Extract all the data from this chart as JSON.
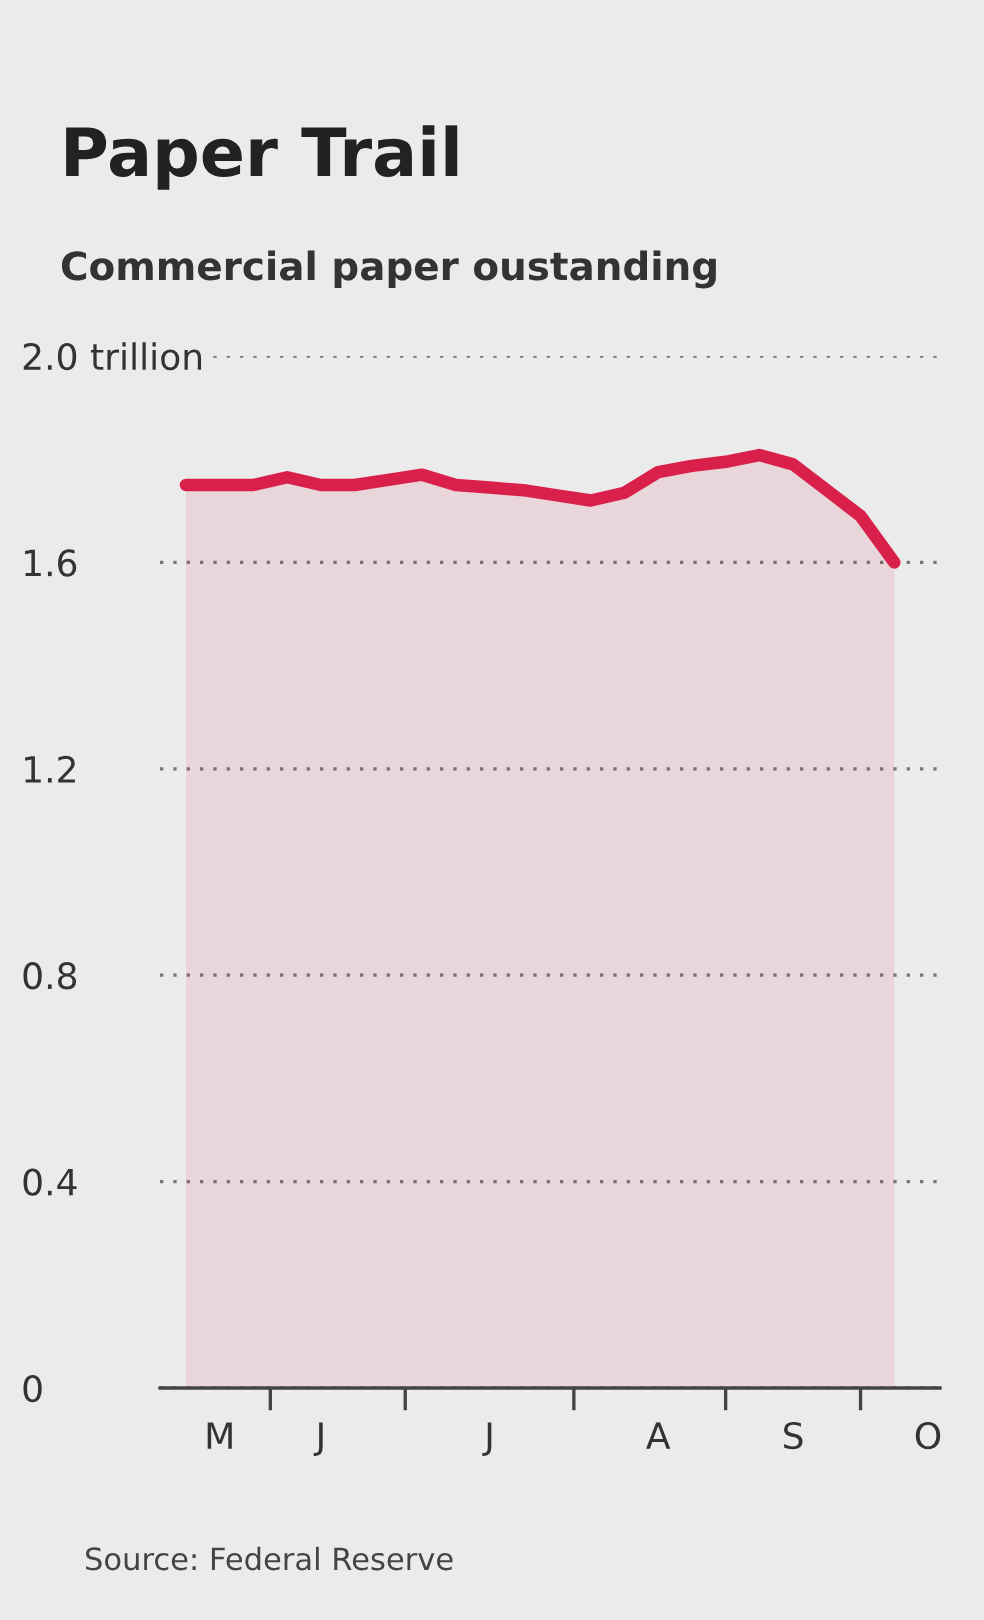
{
  "chart_data": {
    "type": "area",
    "title": "Paper Trail",
    "subtitle": "Commercial paper oustanding",
    "annotations": [
      "Source: Federal Reserve"
    ],
    "categories": [
      null,
      "M",
      null,
      null,
      "J",
      null,
      null,
      null,
      null,
      "J",
      null,
      null,
      null,
      null,
      "A",
      null,
      null,
      null,
      "S",
      null,
      null,
      null,
      "O"
    ],
    "series": [
      {
        "color": "#d9204a",
        "values": [
          1.75,
          1.75,
          1.75,
          1.765,
          1.75,
          1.75,
          1.76,
          1.77,
          1.75,
          1.745,
          1.74,
          1.73,
          1.72,
          1.735,
          1.775,
          1.787,
          1.795,
          1.808,
          1.79,
          1.74,
          1.69,
          1.6,
          null
        ]
      }
    ],
    "ylim": [
      0,
      2.0
    ],
    "yticks": [
      0,
      0.4,
      0.8,
      1.2,
      1.6,
      {
        "value": 2.0,
        "label": "2.0 trillion"
      }
    ],
    "grid": "y"
  }
}
